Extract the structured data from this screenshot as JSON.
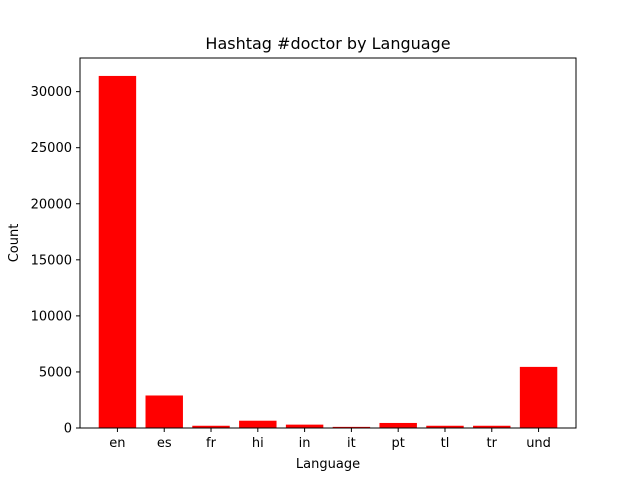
{
  "chart_data": {
    "type": "bar",
    "title": "Hashtag #doctor by Language",
    "xlabel": "Language",
    "ylabel": "Count",
    "categories": [
      "en",
      "es",
      "fr",
      "hi",
      "in",
      "it",
      "pt",
      "tl",
      "tr",
      "und"
    ],
    "values": [
      31400,
      2900,
      200,
      650,
      300,
      100,
      450,
      200,
      200,
      5450
    ],
    "ylim": [
      0,
      33000
    ],
    "yticks": [
      0,
      5000,
      10000,
      15000,
      20000,
      25000,
      30000
    ],
    "bar_color": "#ff0000",
    "grid": false
  }
}
